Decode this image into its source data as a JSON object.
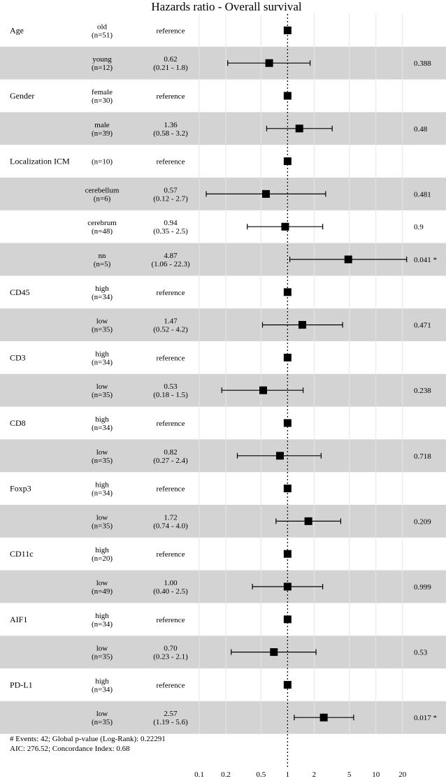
{
  "chart_data": {
    "type": "forest",
    "title": "Hazards ratio - Overall survival",
    "scale": "log",
    "xlim": [
      0.1,
      30
    ],
    "x_ticks": [
      "0.1",
      "0.2",
      "0.5",
      "1",
      "2",
      "5",
      "10",
      "20"
    ],
    "reference_line": 1,
    "rows": [
      {
        "variable": "Age",
        "level": "old",
        "n": "(n=51)",
        "estimate_text": "reference",
        "ci_text": "",
        "p_text": "",
        "hr": 1,
        "lo": null,
        "hi": null,
        "shade": false
      },
      {
        "variable": "",
        "level": "young",
        "n": "(n=12)",
        "estimate_text": "0.62",
        "ci_text": "(0.21 -  1.8)",
        "p_text": "0.388",
        "hr": 0.62,
        "lo": 0.21,
        "hi": 1.8,
        "shade": true
      },
      {
        "variable": "Gender",
        "level": "female",
        "n": "(n=30)",
        "estimate_text": "reference",
        "ci_text": "",
        "p_text": "",
        "hr": 1,
        "lo": null,
        "hi": null,
        "shade": false
      },
      {
        "variable": "",
        "level": "male",
        "n": "(n=39)",
        "estimate_text": "1.36",
        "ci_text": "(0.58 -  3.2)",
        "p_text": "0.48",
        "hr": 1.36,
        "lo": 0.58,
        "hi": 3.2,
        "shade": true
      },
      {
        "variable": "Localization ICM",
        "level": "",
        "n": "(n=10)",
        "estimate_text": "reference",
        "ci_text": "",
        "p_text": "",
        "hr": 1,
        "lo": null,
        "hi": null,
        "shade": false
      },
      {
        "variable": "",
        "level": "cerebellum",
        "n": "(n=6)",
        "estimate_text": "0.57",
        "ci_text": "(0.12 -  2.7)",
        "p_text": "0.481",
        "hr": 0.57,
        "lo": 0.12,
        "hi": 2.7,
        "shade": true
      },
      {
        "variable": "",
        "level": "cerebrum",
        "n": "(n=48)",
        "estimate_text": "0.94",
        "ci_text": "(0.35 -  2.5)",
        "p_text": "0.9",
        "hr": 0.94,
        "lo": 0.35,
        "hi": 2.5,
        "shade": false
      },
      {
        "variable": "",
        "level": "nn",
        "n": "(n=5)",
        "estimate_text": "4.87",
        "ci_text": "(1.06 - 22.3)",
        "p_text": "0.041 *",
        "hr": 4.87,
        "lo": 1.06,
        "hi": 22.3,
        "shade": true
      },
      {
        "variable": "CD45",
        "level": "high",
        "n": "(n=34)",
        "estimate_text": "reference",
        "ci_text": "",
        "p_text": "",
        "hr": 1,
        "lo": null,
        "hi": null,
        "shade": false
      },
      {
        "variable": "",
        "level": "low",
        "n": "(n=35)",
        "estimate_text": "1.47",
        "ci_text": "(0.52 -  4.2)",
        "p_text": "0.471",
        "hr": 1.47,
        "lo": 0.52,
        "hi": 4.2,
        "shade": true
      },
      {
        "variable": "CD3",
        "level": "high",
        "n": "(n=34)",
        "estimate_text": "reference",
        "ci_text": "",
        "p_text": "",
        "hr": 1,
        "lo": null,
        "hi": null,
        "shade": false
      },
      {
        "variable": "",
        "level": "low",
        "n": "(n=35)",
        "estimate_text": "0.53",
        "ci_text": "(0.18 -  1.5)",
        "p_text": "0.238",
        "hr": 0.53,
        "lo": 0.18,
        "hi": 1.5,
        "shade": true
      },
      {
        "variable": "CD8",
        "level": "high",
        "n": "(n=34)",
        "estimate_text": "reference",
        "ci_text": "",
        "p_text": "",
        "hr": 1,
        "lo": null,
        "hi": null,
        "shade": false
      },
      {
        "variable": "",
        "level": "low",
        "n": "(n=35)",
        "estimate_text": "0.82",
        "ci_text": "(0.27 -  2.4)",
        "p_text": "0.718",
        "hr": 0.82,
        "lo": 0.27,
        "hi": 2.4,
        "shade": true
      },
      {
        "variable": "Foxp3",
        "level": "high",
        "n": "(n=34)",
        "estimate_text": "reference",
        "ci_text": "",
        "p_text": "",
        "hr": 1,
        "lo": null,
        "hi": null,
        "shade": false
      },
      {
        "variable": "",
        "level": "low",
        "n": "(n=35)",
        "estimate_text": "1.72",
        "ci_text": "(0.74 -  4.0)",
        "p_text": "0.209",
        "hr": 1.72,
        "lo": 0.74,
        "hi": 4.0,
        "shade": true
      },
      {
        "variable": "CD11c",
        "level": "high",
        "n": "(n=20)",
        "estimate_text": "reference",
        "ci_text": "",
        "p_text": "",
        "hr": 1,
        "lo": null,
        "hi": null,
        "shade": false
      },
      {
        "variable": "",
        "level": "low",
        "n": "(n=49)",
        "estimate_text": "1.00",
        "ci_text": "(0.40 -  2.5)",
        "p_text": "0.999",
        "hr": 1.0,
        "lo": 0.4,
        "hi": 2.5,
        "shade": true
      },
      {
        "variable": "AIF1",
        "level": "high",
        "n": "(n=34)",
        "estimate_text": "reference",
        "ci_text": "",
        "p_text": "",
        "hr": 1,
        "lo": null,
        "hi": null,
        "shade": false
      },
      {
        "variable": "",
        "level": "low",
        "n": "(n=35)",
        "estimate_text": "0.70",
        "ci_text": "(0.23 -  2.1)",
        "p_text": "0.53",
        "hr": 0.7,
        "lo": 0.23,
        "hi": 2.1,
        "shade": true
      },
      {
        "variable": "PD-L1",
        "level": "high",
        "n": "(n=34)",
        "estimate_text": "reference",
        "ci_text": "",
        "p_text": "",
        "hr": 1,
        "lo": null,
        "hi": null,
        "shade": false
      },
      {
        "variable": "",
        "level": "low",
        "n": "(n=35)",
        "estimate_text": "2.57",
        "ci_text": "(1.19 -  5.6)",
        "p_text": "0.017 *",
        "hr": 2.57,
        "lo": 1.19,
        "hi": 5.6,
        "shade": true
      }
    ],
    "footer": [
      "# Events: 42; Global p-value (Log-Rank): 0.22291",
      "AIC: 276.52; Concordance Index: 0.68"
    ],
    "colors": {
      "shade": "#d3d3d3",
      "grid": "#e6e6e6",
      "marker": "#000000"
    }
  }
}
